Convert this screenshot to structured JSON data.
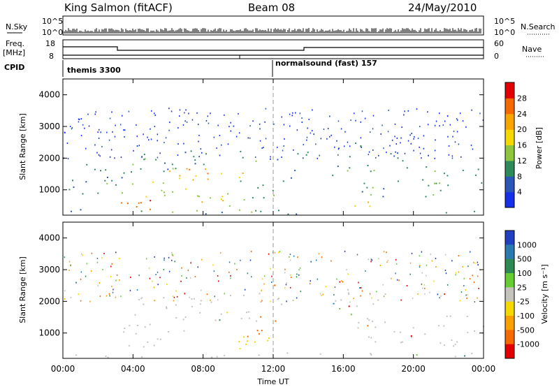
{
  "header": {
    "title": "King Salmon (fitACF)",
    "beam": "Beam 08",
    "date": "24/May/2010"
  },
  "side_labels": {
    "nsky": "N.Sky",
    "freq": "Freq.",
    "mhz": "[MHz]",
    "cpid": "CPID",
    "nsearch": "N.Search",
    "nave": "Nave"
  },
  "aux_axes": {
    "n_ticks": [
      "10^5",
      "10^0"
    ],
    "freq_ticks": [
      "18",
      "8"
    ],
    "nave_ticks": [
      "60",
      "0"
    ]
  },
  "cpid_labels": {
    "first": "themis 3300",
    "second": "normalsound (fast) 157"
  },
  "chart_data": [
    {
      "type": "heatmap",
      "name": "power",
      "ylabel": "Slant Range [km]",
      "xlabel": "Time UT",
      "xticks": [
        "00:00",
        "04:00",
        "08:00",
        "12:00",
        "16:00",
        "20:00",
        "00:00"
      ],
      "yticks": [
        "1000",
        "2000",
        "3000",
        "4000"
      ],
      "xlim_hours": [
        0,
        24
      ],
      "ylim_km": [
        200,
        4500
      ],
      "colorbar": {
        "label": "Power [dB]",
        "ticks": [
          "4",
          "8",
          "12",
          "16",
          "20",
          "24",
          "28"
        ],
        "colors": [
          "#1530e8",
          "#2c55b8",
          "#2f8a5a",
          "#8cc63f",
          "#f5d800",
          "#f7a600",
          "#f46a00",
          "#e00000"
        ]
      },
      "regions": [
        {
          "t": [
            0.0,
            3.0
          ],
          "r": [
            700,
            1400
          ],
          "level": 8
        },
        {
          "t": [
            1.0,
            4.5
          ],
          "r": [
            1400,
            2000
          ],
          "level": 8
        },
        {
          "t": [
            2.5,
            6.5
          ],
          "r": [
            400,
            800
          ],
          "level": 24
        },
        {
          "t": [
            3.0,
            7.0
          ],
          "r": [
            800,
            1300
          ],
          "level": 12
        },
        {
          "t": [
            4.0,
            9.0
          ],
          "r": [
            1600,
            2300
          ],
          "level": 8
        },
        {
          "t": [
            5.0,
            8.5
          ],
          "r": [
            1200,
            1700
          ],
          "level": 16
        },
        {
          "t": [
            6.5,
            10.5
          ],
          "r": [
            1300,
            1700
          ],
          "level": 20
        },
        {
          "t": [
            6.5,
            10.5
          ],
          "r": [
            500,
            900
          ],
          "level": 12
        },
        {
          "t": [
            7.5,
            9.5
          ],
          "r": [
            600,
            900
          ],
          "level": 16
        },
        {
          "t": [
            9.5,
            12.5
          ],
          "r": [
            1900,
            2300
          ],
          "level": 8
        },
        {
          "t": [
            10.0,
            12.5
          ],
          "r": [
            700,
            1300
          ],
          "level": 8
        },
        {
          "t": [
            12.0,
            14.0
          ],
          "r": [
            2000,
            2300
          ],
          "level": 8
        },
        {
          "t": [
            12.5,
            13.5
          ],
          "r": [
            1200,
            1800
          ],
          "level": 8
        },
        {
          "t": [
            15.0,
            17.0
          ],
          "r": [
            2000,
            2500
          ],
          "level": 8
        },
        {
          "t": [
            15.0,
            18.0
          ],
          "r": [
            1400,
            1900
          ],
          "level": 8
        },
        {
          "t": [
            16.5,
            18.0
          ],
          "r": [
            400,
            800
          ],
          "level": 20
        },
        {
          "t": [
            17.0,
            20.0
          ],
          "r": [
            800,
            1400
          ],
          "level": 8
        },
        {
          "t": [
            18.0,
            21.0
          ],
          "r": [
            1700,
            2200
          ],
          "level": 8
        },
        {
          "t": [
            20.0,
            24.0
          ],
          "r": [
            800,
            1700
          ],
          "level": 8
        },
        {
          "t": [
            0.0,
            24.0
          ],
          "r": [
            250,
            400
          ],
          "level": 8
        }
      ]
    },
    {
      "type": "heatmap",
      "name": "velocity",
      "ylabel": "Slant Range [km]",
      "xlabel": "Time UT",
      "xticks": [
        "00:00",
        "04:00",
        "08:00",
        "12:00",
        "16:00",
        "20:00",
        "00:00"
      ],
      "yticks": [
        "1000",
        "2000",
        "3000",
        "4000"
      ],
      "xlim_hours": [
        0,
        24
      ],
      "ylim_km": [
        200,
        4500
      ],
      "colorbar": {
        "label": "Velocity [m s⁻¹]",
        "ticks": [
          "1000",
          "500",
          "100",
          "25",
          "-25",
          "-100",
          "-500",
          "-1000"
        ],
        "colors": [
          "#2040c0",
          "#2a7ab0",
          "#2e8a50",
          "#66cc33",
          "#c4c4bc",
          "#f5d800",
          "#f7a000",
          "#f46a00",
          "#e00000"
        ]
      },
      "regions": [
        {
          "t": [
            3.0,
            7.0
          ],
          "r": [
            500,
            1300
          ],
          "level": 0
        },
        {
          "t": [
            4.0,
            9.0
          ],
          "r": [
            1500,
            2200
          ],
          "level": 0
        },
        {
          "t": [
            6.5,
            11.5
          ],
          "r": [
            1300,
            1800
          ],
          "level": 0
        },
        {
          "t": [
            8.0,
            12.5
          ],
          "r": [
            500,
            900
          ],
          "level": -100
        },
        {
          "t": [
            10.5,
            12.5
          ],
          "r": [
            900,
            1600
          ],
          "level": -500
        },
        {
          "t": [
            9.5,
            14.0
          ],
          "r": [
            1900,
            2300
          ],
          "level": 0
        },
        {
          "t": [
            14.8,
            16.5
          ],
          "r": [
            1500,
            1800
          ],
          "level": 100
        },
        {
          "t": [
            15.0,
            19.0
          ],
          "r": [
            1800,
            2400
          ],
          "level": 0
        },
        {
          "t": [
            16.5,
            24.0
          ],
          "r": [
            600,
            1600
          ],
          "level": 0
        },
        {
          "t": [
            0.0,
            24.0
          ],
          "r": [
            250,
            400
          ],
          "level": 0
        }
      ]
    }
  ]
}
